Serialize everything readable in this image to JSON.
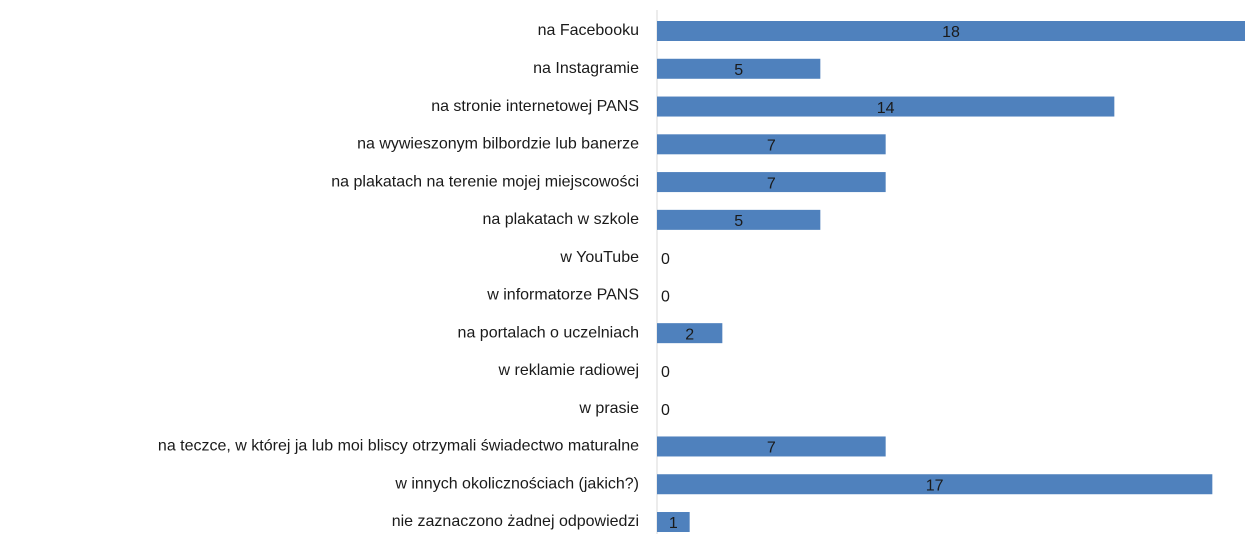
{
  "chart_data": {
    "type": "bar",
    "orientation": "horizontal",
    "categories": [
      "na Facebooku",
      "na Instagramie",
      "na stronie internetowej PANS",
      "na wywieszonym bilbordzie lub banerze",
      "na plakatach na terenie mojej miejscowości",
      "na plakatach w szkole",
      "w YouTube",
      "w informatorze PANS",
      "na portalach o uczelniach",
      "w reklamie radiowej",
      "w prasie",
      "na teczce, w której ja lub moi bliscy otrzymali świadectwo maturalne",
      "w innych okolicznościach (jakich?)",
      "nie zaznaczono żadnej odpowiedzi"
    ],
    "values": [
      18,
      5,
      14,
      7,
      7,
      5,
      0,
      0,
      2,
      0,
      0,
      7,
      17,
      1
    ],
    "color": "#4f81bd",
    "xlim": [
      0,
      18
    ]
  }
}
